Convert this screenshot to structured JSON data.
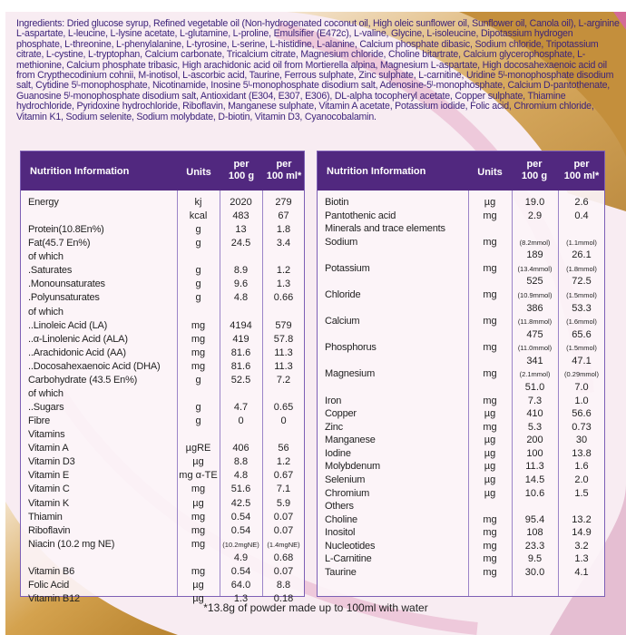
{
  "ingredients": "Ingredients: Dried glucose syrup, Refined vegetable oil (Non-hydrogenated coconut oil, High oleic sunflower oil, Sunflower oil, Canola oil), L-arginine L-aspartate, L-leucine, L-lysine acetate, L-glutamine, L-proline, Emulsifier (E472c), L-valine, Glycine, L-isoleucine, Dipotassium hydrogen phosphate, L-threonine, L-phenylalanine, L-tyrosine, L-serine, L-histidine, L-alanine, Calcium phosphate dibasic, Sodium chloride, Tripotassium citrate, L-cystine, L-tryptophan, Calcium carbonate, Tricalcium citrate, Magnesium chloride, Choline bitartrate, Calcium glycerophosphate, L-methionine, Calcium phosphate tribasic, High arachidonic acid oil from Mortierella alpina, Magnesium L-aspartate, High docosahexaenoic acid oil from Crypthecodinium cohnii, M-inotisol, L-ascorbic acid, Taurine, Ferrous sulphate, Zinc sulphate, L-carnitine, Uridine 5ˡ-monophosphate disodium salt, Cytidine 5ˡ-monophosphate, Nicotinamide, Inosine 5ˡ-monophosphate disodium salt, Adenosine-5ˡ-monophosphate, Calcium D-pantothenate, Guanosine 5ˡ-monophosphate disodium salt, Antioxidant (E304, E307, E306), DL-alpha tocopheryl acetate, Copper sulphate, Thiamine hydrochloride, Pyridoxine hydrochloride, Riboflavin, Manganese sulphate, Vitamin A acetate, Potassium iodide, Folic acid, Chromium chloride, Vitamin K1, Sodium selenite, Sodium molybdate, D-biotin, Vitamin D3, Cyanocobalamin.",
  "header": {
    "name": "Nutrition Information",
    "units": "Units",
    "per_g_1": "per",
    "per_g_2": "100 g",
    "per_ml_1": "per",
    "per_ml_2": "100 ml*"
  },
  "colors": {
    "header_bg": "#51287f",
    "ingredients_text": "#3d237a",
    "gold": "#c9953e",
    "pink": "#e4a6c2"
  },
  "left_table": [
    [
      "Energy",
      "kj",
      "2020",
      "279"
    ],
    [
      "",
      "kcal",
      "483",
      "67"
    ],
    [
      "Protein(10.8En%)",
      "g",
      "13",
      "1.8"
    ],
    [
      "Fat(45.7 En%)",
      "g",
      "24.5",
      "3.4"
    ],
    [
      "of which",
      "",
      "",
      ""
    ],
    [
      ".Saturates",
      "g",
      "8.9",
      "1.2"
    ],
    [
      ".Monounsaturates",
      "g",
      "9.6",
      "1.3"
    ],
    [
      ".Polyunsaturates",
      "g",
      "4.8",
      "0.66"
    ],
    [
      "of which",
      "",
      "",
      ""
    ],
    [
      "..Linoleic Acid (LA)",
      "mg",
      "4194",
      "579"
    ],
    [
      "..α-Linolenic Acid (ALA)",
      "mg",
      "419",
      "57.8"
    ],
    [
      "..Arachidonic Acid (AA)",
      "mg",
      "81.6",
      "11.3"
    ],
    [
      "..Docosahexaenoic Acid (DHA)",
      "mg",
      "81.6",
      "11.3"
    ],
    [
      "Carbohydrate (43.5 En%)",
      "g",
      "52.5",
      "7.2"
    ],
    [
      "of which",
      "",
      "",
      ""
    ],
    [
      "..Sugars",
      "g",
      "4.7",
      "0.65"
    ],
    [
      "Fibre",
      "g",
      "0",
      "0"
    ],
    [
      "Vitamins",
      "",
      "",
      ""
    ],
    [
      "Vitamin A",
      "µgRE",
      "406",
      "56"
    ],
    [
      "Vitamin D3",
      "µg",
      "8.8",
      "1.2"
    ],
    [
      "Vitamin E",
      "mg α-TE",
      "4.8",
      "0.67"
    ],
    [
      "Vitamin C",
      "mg",
      "51.6",
      "7.1"
    ],
    [
      "Vitamin K",
      "µg",
      "42.5",
      "5.9"
    ],
    [
      "Thiamin",
      "mg",
      "0.54",
      "0.07"
    ],
    [
      "Riboflavin",
      "mg",
      "0.54",
      "0.07"
    ],
    [
      "Niacin (10.2 mg NE)",
      "mg",
      "(10.2mgNE)",
      "(1.4mgNE)"
    ],
    [
      "",
      "",
      "4.9",
      "0.68"
    ],
    [
      "Vitamin B6",
      "mg",
      "0.54",
      "0.07"
    ],
    [
      "Folic Acid",
      "µg",
      "64.0",
      "8.8"
    ],
    [
      "Vitamin B12",
      "µg",
      "1.3",
      "0.18"
    ]
  ],
  "right_table": [
    [
      "Biotin",
      "µg",
      "19.0",
      "2.6"
    ],
    [
      "Pantothenic acid",
      "mg",
      "2.9",
      "0.4"
    ],
    [
      "Minerals and trace elements",
      "",
      "",
      ""
    ],
    [
      "Sodium",
      "mg",
      "(8.2mmol)",
      "(1.1mmol)"
    ],
    [
      "",
      "",
      "189",
      "26.1"
    ],
    [
      "Potassium",
      "mg",
      "(13.4mmol)",
      "(1.8mmol)"
    ],
    [
      "",
      "",
      "525",
      "72.5"
    ],
    [
      "Chloride",
      "mg",
      "(10.9mmol)",
      "(1.5mmol)"
    ],
    [
      "",
      "",
      "386",
      "53.3"
    ],
    [
      "Calcium",
      "mg",
      "(11.8mmol)",
      "(1.6mmol)"
    ],
    [
      "",
      "",
      "475",
      "65.6"
    ],
    [
      "Phosphorus",
      "mg",
      "(11.0mmol)",
      "(1.5mmol)"
    ],
    [
      "",
      "",
      "341",
      "47.1"
    ],
    [
      "Magnesium",
      "mg",
      "(2.1mmol)",
      "(0.29mmol)"
    ],
    [
      "",
      "",
      "51.0",
      "7.0"
    ],
    [
      "Iron",
      "mg",
      "7.3",
      "1.0"
    ],
    [
      "Copper",
      "µg",
      "410",
      "56.6"
    ],
    [
      "Zinc",
      "mg",
      "5.3",
      "0.73"
    ],
    [
      "Manganese",
      "µg",
      "200",
      "30"
    ],
    [
      "Iodine",
      "µg",
      "100",
      "13.8"
    ],
    [
      "Molybdenum",
      "µg",
      "11.3",
      "1.6"
    ],
    [
      "Selenium",
      "µg",
      "14.5",
      "2.0"
    ],
    [
      "Chromium",
      "µg",
      "10.6",
      "1.5"
    ],
    [
      "Others",
      "",
      "",
      ""
    ],
    [
      "Choline",
      "mg",
      "95.4",
      "13.2"
    ],
    [
      "Inositol",
      "mg",
      "108",
      "14.9"
    ],
    [
      "Nucleotides",
      "mg",
      "23.3",
      "3.2"
    ],
    [
      "L-Carnitine",
      "mg",
      "9.5",
      "1.3"
    ],
    [
      "Taurine",
      "mg",
      "30.0",
      "4.1"
    ]
  ],
  "footnote": "*13.8g of powder made up to 100ml with water"
}
